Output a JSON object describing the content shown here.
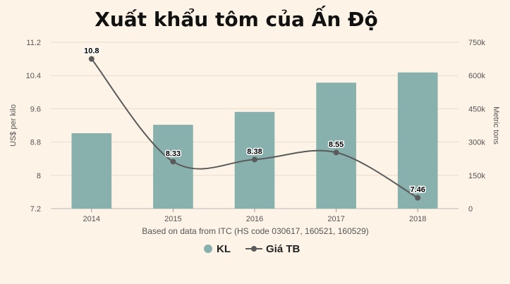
{
  "chart_data": {
    "type": "bar",
    "title": "Xuất khẩu tôm của Ấn Độ",
    "xlabel": "Based on data from ITC (HS code 030617, 160521, 160529)",
    "categories": [
      "2014",
      "2015",
      "2016",
      "2017",
      "2018"
    ],
    "y_left": {
      "label": "US$ per kilo",
      "ticks": [
        "7.2",
        "8",
        "8.8",
        "9.6",
        "10.4",
        "11.2"
      ],
      "range": [
        7.2,
        11.2
      ]
    },
    "y_right": {
      "label": "Metric tons",
      "ticks": [
        "0",
        "150k",
        "300k",
        "450k",
        "600k",
        "750k"
      ],
      "range": [
        0,
        750000
      ]
    },
    "series": [
      {
        "name": "KL",
        "type": "bar",
        "axis": "right",
        "color": "#88b0ad",
        "values": [
          340000,
          378000,
          436000,
          568000,
          614000
        ]
      },
      {
        "name": "Giá TB",
        "type": "line",
        "axis": "left",
        "color": "#5a5a5a",
        "values": [
          10.8,
          8.33,
          8.38,
          8.55,
          7.46
        ],
        "labels": [
          "10.8",
          "8.33",
          "8.38",
          "8.55",
          "7.46"
        ]
      }
    ],
    "grid": true,
    "legend": "bottom-center"
  }
}
